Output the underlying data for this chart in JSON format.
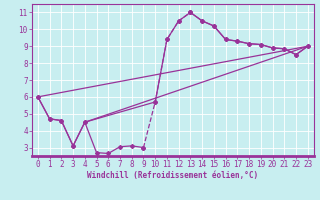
{
  "background_color": "#c8eef0",
  "grid_color": "#ffffff",
  "line_color": "#993399",
  "xlabel": "Windchill (Refroidissement éolien,°C)",
  "xlim": [
    -0.5,
    23.5
  ],
  "ylim": [
    2.5,
    11.5
  ],
  "yticks": [
    3,
    4,
    5,
    6,
    7,
    8,
    9,
    10,
    11
  ],
  "xticks": [
    0,
    1,
    2,
    3,
    4,
    5,
    6,
    7,
    8,
    9,
    10,
    11,
    12,
    13,
    14,
    15,
    16,
    17,
    18,
    19,
    20,
    21,
    22,
    23
  ],
  "line1_x": [
    0,
    1,
    2,
    3,
    4,
    5,
    6,
    7,
    8,
    9,
    10,
    11,
    12,
    13,
    14,
    15,
    16,
    17,
    18,
    19,
    20,
    21,
    22,
    23
  ],
  "line1_y": [
    6.0,
    4.7,
    4.6,
    3.1,
    4.5,
    2.7,
    2.65,
    3.05,
    3.1,
    3.0,
    5.7,
    9.4,
    10.5,
    11.0,
    10.5,
    10.2,
    9.4,
    9.3,
    9.15,
    9.1,
    8.9,
    8.85,
    8.5,
    9.0
  ],
  "line2_x": [
    0,
    1,
    2,
    3,
    4,
    10,
    11,
    12,
    13,
    14,
    15,
    16,
    17,
    18,
    19,
    20,
    21,
    22,
    23
  ],
  "line2_y": [
    6.0,
    4.7,
    4.6,
    3.1,
    4.5,
    5.7,
    9.4,
    10.5,
    11.0,
    10.5,
    10.2,
    9.4,
    9.3,
    9.15,
    9.1,
    8.9,
    8.85,
    8.5,
    9.0
  ],
  "line3_x": [
    0,
    23
  ],
  "line3_y": [
    6.0,
    9.0
  ],
  "line4_x": [
    4,
    23
  ],
  "line4_y": [
    4.5,
    9.0
  ],
  "xlabel_fontsize": 5.5,
  "tick_fontsize": 5.5
}
